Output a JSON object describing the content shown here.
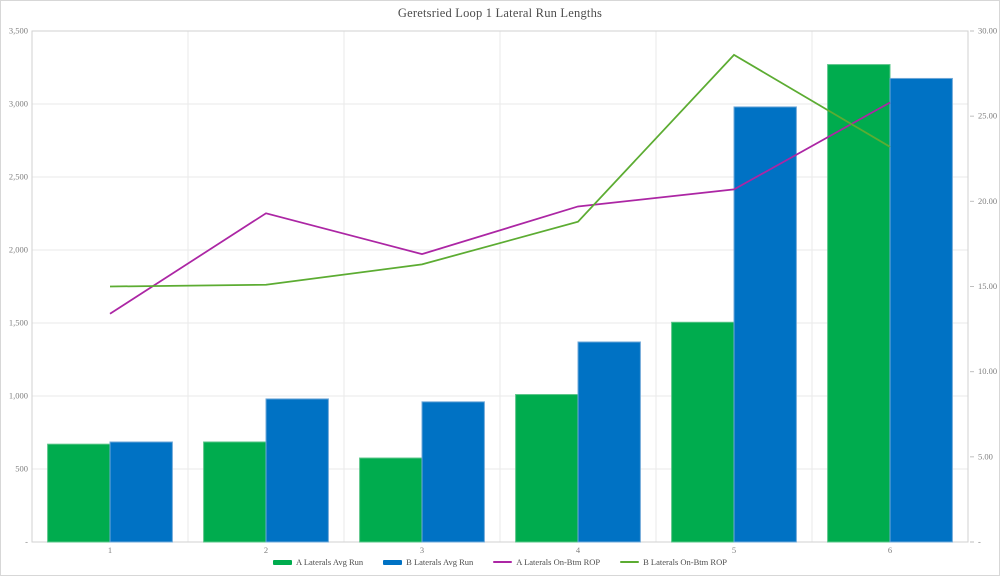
{
  "chart_data": {
    "type": "combo",
    "title": "Geretsried Loop 1 Lateral Run Lengths",
    "categories": [
      "1",
      "2",
      "3",
      "4",
      "5",
      "6"
    ],
    "series": [
      {
        "name": "A Laterals Avg Run",
        "type": "bar",
        "axis": "left",
        "color": "#00AC4E",
        "edge_color": "#57C487",
        "values": [
          670,
          685,
          575,
          1010,
          1505,
          3270
        ]
      },
      {
        "name": "B Laterals Avg Run",
        "type": "bar",
        "axis": "left",
        "color": "#0072C4",
        "edge_color": "#6FA8D8",
        "values": [
          685,
          980,
          960,
          1370,
          2980,
          3175
        ]
      },
      {
        "name": "A Laterals On-Btm ROP",
        "type": "line",
        "axis": "right",
        "color": "#AC26A4",
        "values": [
          13.4,
          19.3,
          16.9,
          19.7,
          20.7,
          25.8
        ]
      },
      {
        "name": "B Laterals On-Btm ROP",
        "type": "line",
        "axis": "right",
        "color": "#5CAC32",
        "values": [
          15.0,
          15.1,
          16.3,
          18.8,
          28.6,
          23.2
        ]
      }
    ],
    "left_axis": {
      "min": 0,
      "max": 3500,
      "tick_step": 500,
      "tick_labels": [
        "-",
        "500",
        "1,000",
        "1,500",
        "2,000",
        "2,500",
        "3,000",
        "3,500"
      ]
    },
    "right_axis": {
      "min": 0,
      "max": 30,
      "tick_step": 5,
      "tick_labels": [
        "-",
        "5.00",
        "10.00",
        "15.00",
        "20.00",
        "25.00",
        "30.00"
      ]
    },
    "grid": true,
    "legend_position": "bottom",
    "colors": {
      "grid": "#eaeaea",
      "plot_border": "#d2d2d2",
      "tick_mark": "#bfbfbf",
      "axis_text": "#808080",
      "title_text": "#4d4d4d",
      "legend_text": "#4d4d4d",
      "background": "#ffffff"
    }
  }
}
